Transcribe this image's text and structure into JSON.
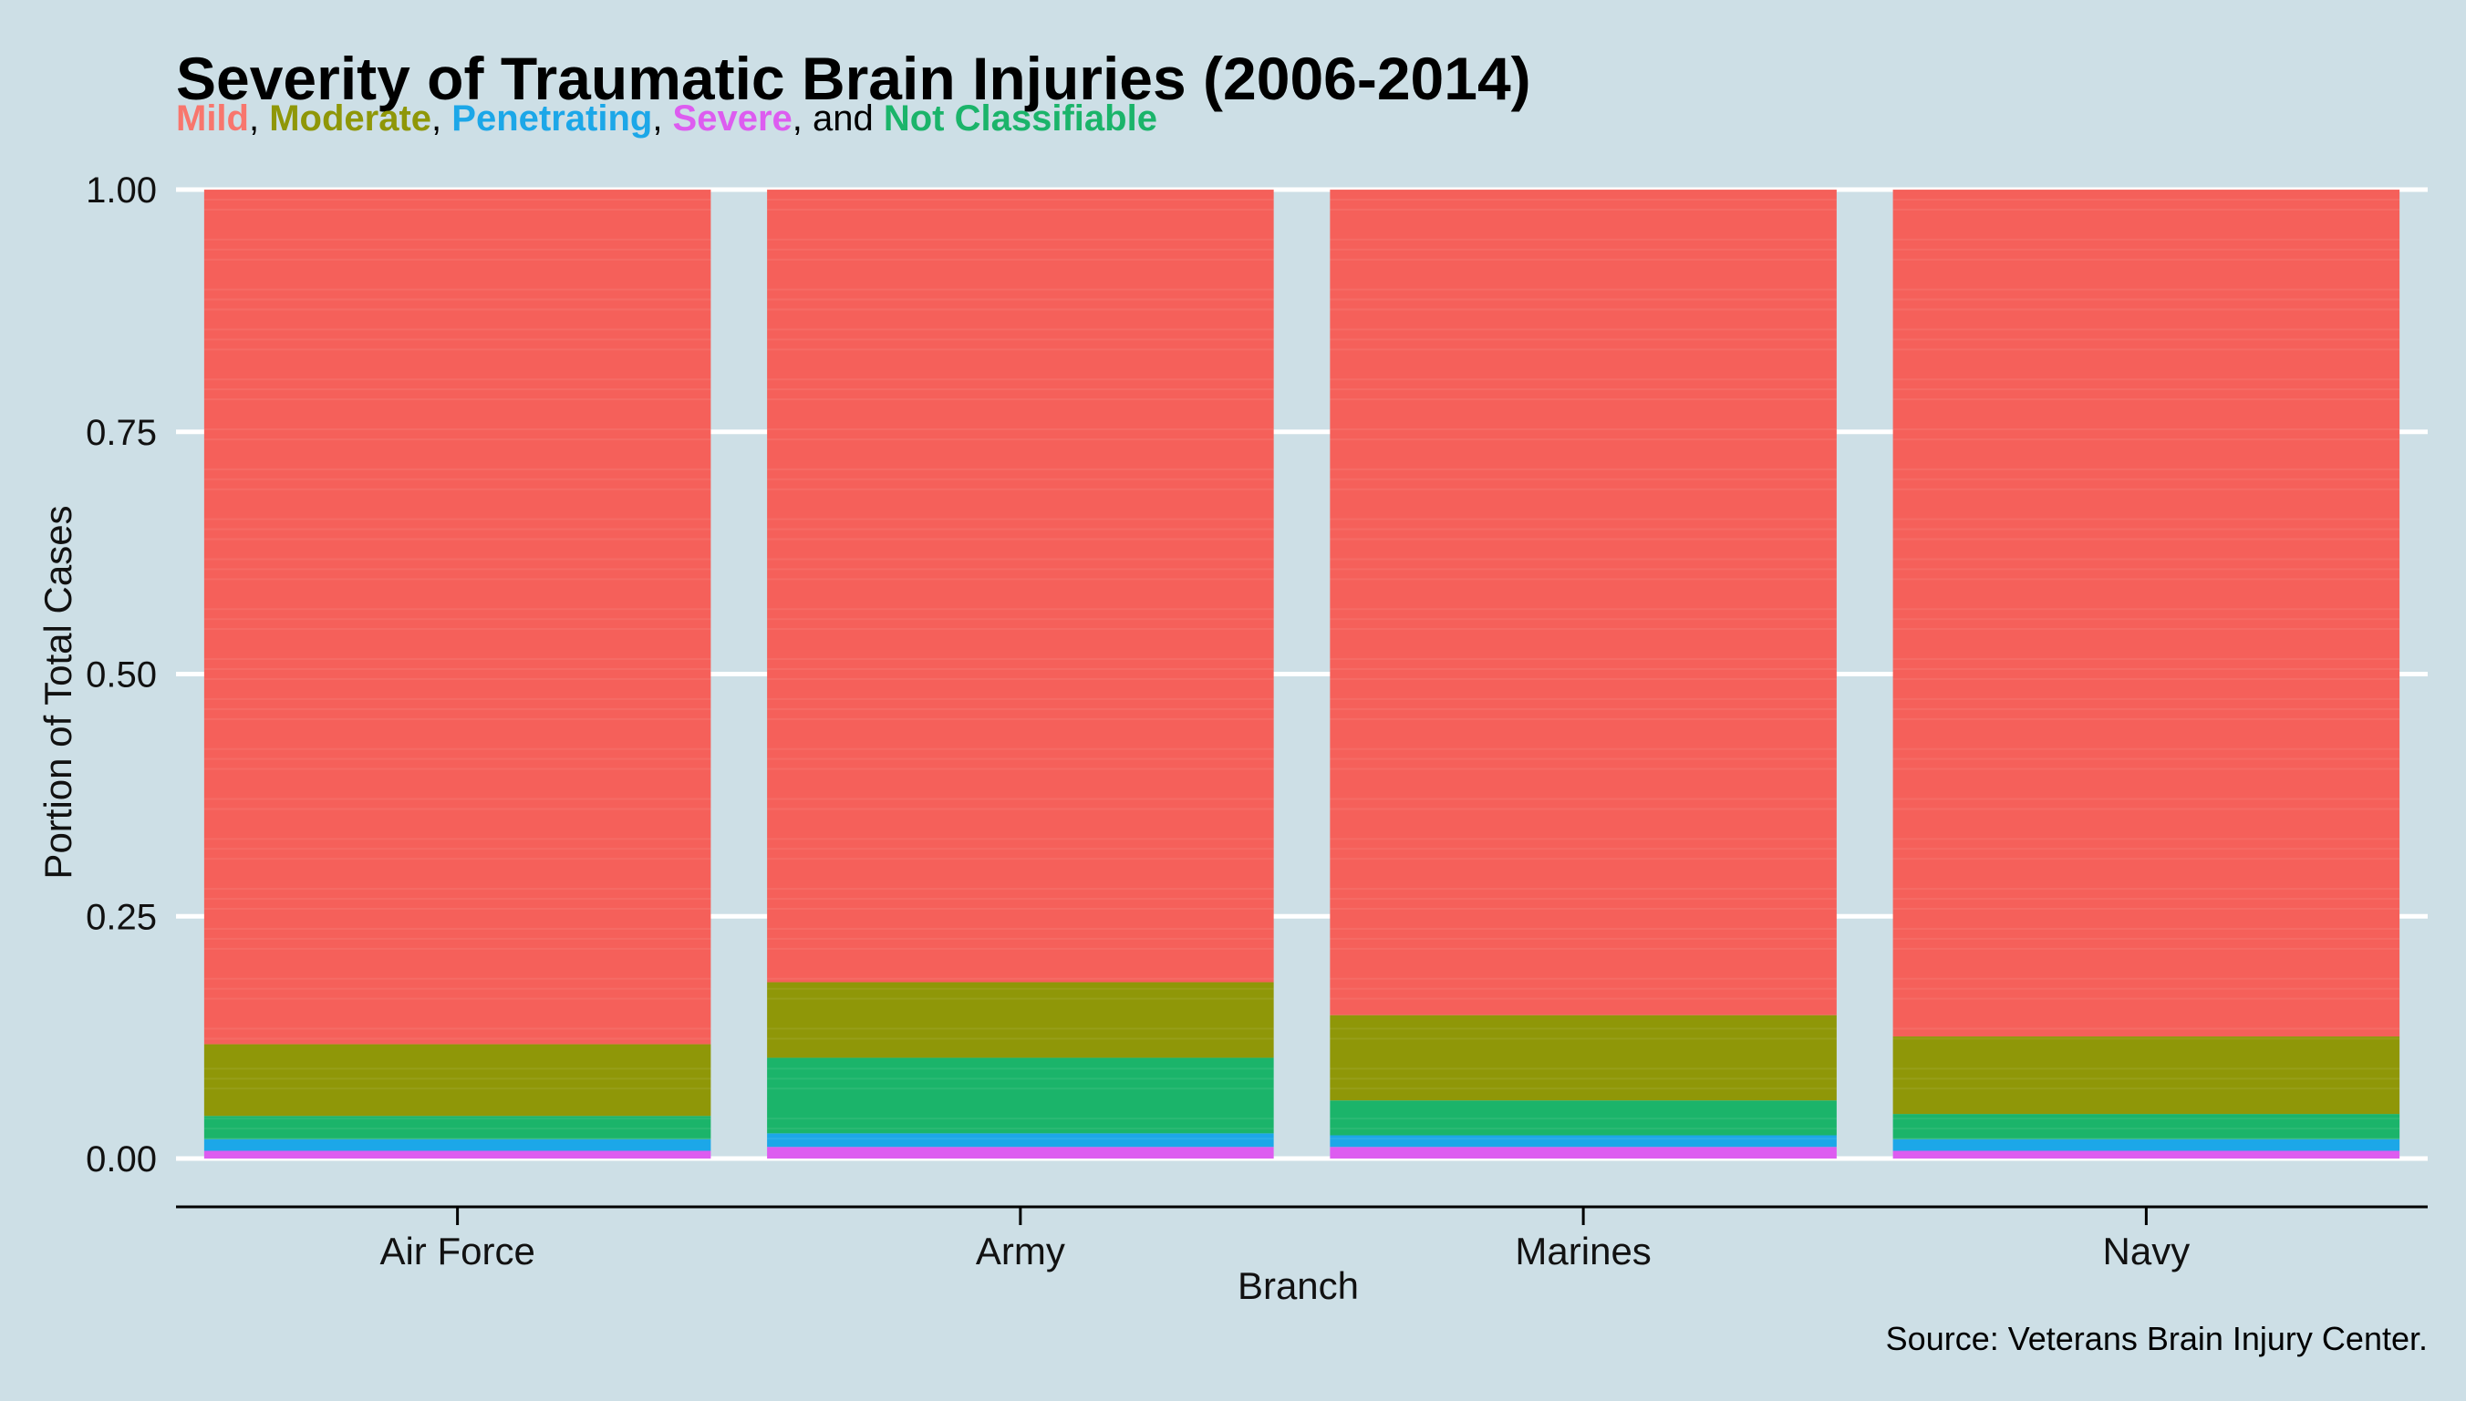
{
  "chart_data": {
    "type": "bar",
    "stacked": true,
    "title": "Severity of Traumatic Brain Injuries (2006-2014)",
    "subtitle": [
      {
        "text": "Mild",
        "color": "#f8766d"
      },
      {
        "text": ", ",
        "color": "#000000"
      },
      {
        "text": "Moderate",
        "color": "#8f9708"
      },
      {
        "text": ", ",
        "color": "#000000"
      },
      {
        "text": "Penetrating",
        "color": "#1ca7e8"
      },
      {
        "text": ", ",
        "color": "#000000"
      },
      {
        "text": "Severe",
        "color": "#dd5cf0"
      },
      {
        "text": ", and ",
        "color": "#000000"
      },
      {
        "text": "Not Classifiable",
        "color": "#1bb46a"
      }
    ],
    "xlabel": "Branch",
    "ylabel": "Portion of Total Cases",
    "ylim": [
      0,
      1
    ],
    "yticks": [
      "0.00",
      "0.25",
      "0.50",
      "0.75",
      "1.00"
    ],
    "grid": "horizontal",
    "legend": "none",
    "categories": [
      "Air Force",
      "Army",
      "Marines",
      "Navy"
    ],
    "series": [
      {
        "name": "Severe",
        "color": "#dd5cf0",
        "values": [
          0.008,
          0.012,
          0.012,
          0.008
        ]
      },
      {
        "name": "Penetrating",
        "color": "#1ca7e8",
        "values": [
          0.012,
          0.014,
          0.012,
          0.012
        ]
      },
      {
        "name": "Not Classifiable",
        "color": "#1bb46a",
        "values": [
          0.024,
          0.078,
          0.036,
          0.026
        ]
      },
      {
        "name": "Moderate",
        "color": "#8f9708",
        "values": [
          0.074,
          0.078,
          0.088,
          0.08
        ]
      },
      {
        "name": "Mild",
        "color": "#f5605a",
        "values": [
          0.882,
          0.818,
          0.852,
          0.874
        ]
      }
    ],
    "source": "Source: Veterans Brain Injury Center."
  }
}
